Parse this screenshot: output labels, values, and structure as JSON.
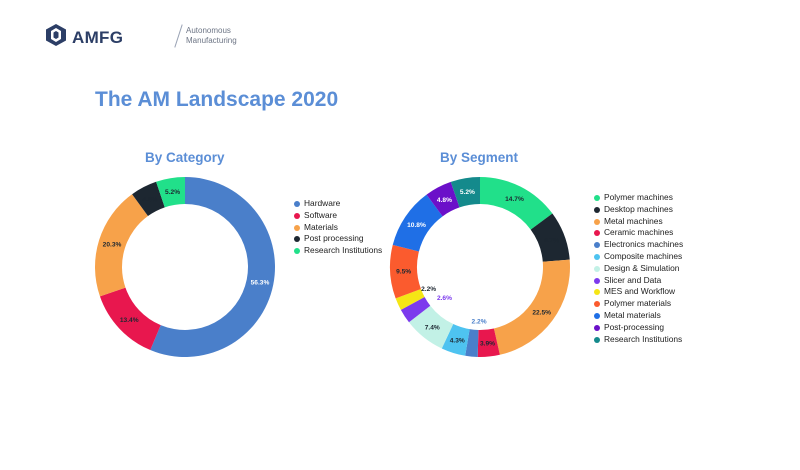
{
  "header": {
    "logo_text": "AMFG",
    "tagline_line1": "Autonomous",
    "tagline_line2": "Manufacturing"
  },
  "page_title": "The AM Landscape 2020",
  "chart_data": [
    {
      "type": "pie",
      "variant": "donut",
      "title": "By Category",
      "legend_position": "right",
      "slices": [
        {
          "label": "Hardware",
          "value": 56.3,
          "display": "56.3%",
          "color": "#4a7fca"
        },
        {
          "label": "Software",
          "value": 13.4,
          "display": "13.4%",
          "color": "#e8174e"
        },
        {
          "label": "Materials",
          "value": 20.3,
          "display": "20.3%",
          "color": "#f7a24a"
        },
        {
          "label": "Post processing",
          "value": 4.8,
          "display": "4.8%",
          "color": "#1d2731"
        },
        {
          "label": "Research Institutions",
          "value": 5.2,
          "display": "5.2%",
          "color": "#21e08a"
        }
      ]
    },
    {
      "type": "pie",
      "variant": "donut",
      "title": "By Segment",
      "legend_position": "right",
      "slices": [
        {
          "label": "Polymer machines",
          "value": 14.7,
          "display": "14.7%",
          "color": "#21e08a"
        },
        {
          "label": "Desktop machines",
          "value": 8.7,
          "display": "8.7%",
          "color": "#1d2731"
        },
        {
          "label": "Metal machines",
          "value": 22.5,
          "display": "22.5%",
          "color": "#f7a24a"
        },
        {
          "label": "Ceramic machines",
          "value": 3.9,
          "display": "3.9%",
          "color": "#e8174e"
        },
        {
          "label": "Electronics machines",
          "value": 2.2,
          "display": "2.2%",
          "color": "#4a7fca"
        },
        {
          "label": "Composite machines",
          "value": 4.3,
          "display": "4.3%",
          "color": "#4ec3f0"
        },
        {
          "label": "Design & Simulation",
          "value": 7.4,
          "display": "7.4%",
          "color": "#c2f1e6"
        },
        {
          "label": "Slicer and Data",
          "value": 2.6,
          "display": "2.6%",
          "color": "#7c3aed"
        },
        {
          "label": "MES and Workflow",
          "value": 2.2,
          "display": "2.2%",
          "color": "#f5e615"
        },
        {
          "label": "Polymer materials",
          "value": 9.5,
          "display": "9.5%",
          "color": "#fb5b2e"
        },
        {
          "label": "Metal materials",
          "value": 10.8,
          "display": "10.8%",
          "color": "#1f6fe6"
        },
        {
          "label": "Post-processing",
          "value": 4.8,
          "display": "4.8%",
          "color": "#6b10c9"
        },
        {
          "label": "Research Institutions",
          "value": 5.2,
          "display": "5.2%",
          "color": "#148a8c"
        }
      ]
    }
  ]
}
